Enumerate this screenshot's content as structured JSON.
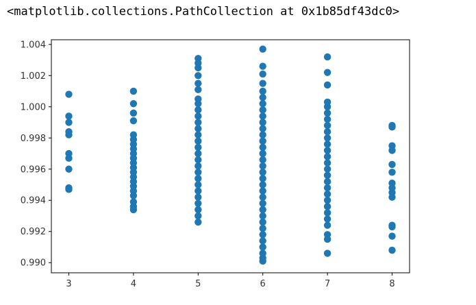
{
  "output_repr": "<matplotlib.collections.PathCollection at 0x1b85df43dc0>",
  "colors": {
    "marker": "#1f77b4",
    "axes": "#000000",
    "background": "#ffffff"
  },
  "chart_data": {
    "type": "scatter",
    "title": "",
    "xlabel": "",
    "ylabel": "",
    "xlim": [
      2.73,
      8.27
    ],
    "ylim": [
      0.98935,
      1.0043
    ],
    "grid": false,
    "x_ticks": [
      3,
      4,
      5,
      6,
      7,
      8
    ],
    "x_tick_labels": [
      "3",
      "4",
      "5",
      "6",
      "7",
      "8"
    ],
    "y_ticks": [
      0.99,
      0.992,
      0.994,
      0.996,
      0.998,
      1.0,
      1.002,
      1.004
    ],
    "y_tick_labels": [
      "0.990",
      "0.992",
      "0.994",
      "0.996",
      "0.998",
      "1.000",
      "1.002",
      "1.004"
    ],
    "groups": [
      {
        "x": 3,
        "y": [
          0.9947,
          0.9948,
          0.996,
          0.9967,
          0.997,
          0.9982,
          0.9984,
          0.999,
          0.9994,
          1.0008
        ]
      },
      {
        "x": 4,
        "y": [
          0.9934,
          0.9936,
          0.9939,
          0.9943,
          0.9946,
          0.9949,
          0.9952,
          0.9955,
          0.9958,
          0.9961,
          0.9964,
          0.9967,
          0.997,
          0.9973,
          0.9976,
          0.9979,
          0.9982,
          0.9991,
          0.9996,
          1.0002,
          1.001
        ]
      },
      {
        "x": 5,
        "y": [
          0.9926,
          0.993,
          0.9934,
          0.9938,
          0.9942,
          0.9946,
          0.995,
          0.9954,
          0.9958,
          0.9962,
          0.9966,
          0.997,
          0.9974,
          0.9978,
          0.9982,
          0.9986,
          0.999,
          0.9994,
          0.9998,
          1.0002,
          1.0005,
          1.0011,
          1.0015,
          1.002,
          1.0025,
          1.0028,
          1.0031
        ]
      },
      {
        "x": 6,
        "y": [
          0.9901,
          0.9903,
          0.9906,
          0.991,
          0.9914,
          0.9918,
          0.9922,
          0.9926,
          0.993,
          0.9934,
          0.9938,
          0.9942,
          0.9946,
          0.995,
          0.9954,
          0.9958,
          0.9962,
          0.9966,
          0.997,
          0.9974,
          0.9978,
          0.9982,
          0.9986,
          0.999,
          0.9994,
          0.9998,
          1.0002,
          1.0006,
          1.001,
          1.0015,
          1.0021,
          1.0026,
          1.0037
        ]
      },
      {
        "x": 7,
        "y": [
          0.9906,
          0.9915,
          0.9918,
          0.9924,
          0.9928,
          0.9932,
          0.9936,
          0.994,
          0.9944,
          0.9948,
          0.9952,
          0.9956,
          0.996,
          0.9964,
          0.9968,
          0.9972,
          0.9976,
          0.998,
          0.9984,
          0.9988,
          0.9992,
          0.9996,
          1.0,
          1.0003,
          1.0014,
          1.0022,
          1.0032
        ]
      },
      {
        "x": 8,
        "y": [
          0.9908,
          0.9917,
          0.9923,
          0.9924,
          0.9942,
          0.9945,
          0.9948,
          0.9951,
          0.9958,
          0.9963,
          0.9972,
          0.9975,
          0.9987,
          0.9988
        ]
      }
    ]
  }
}
